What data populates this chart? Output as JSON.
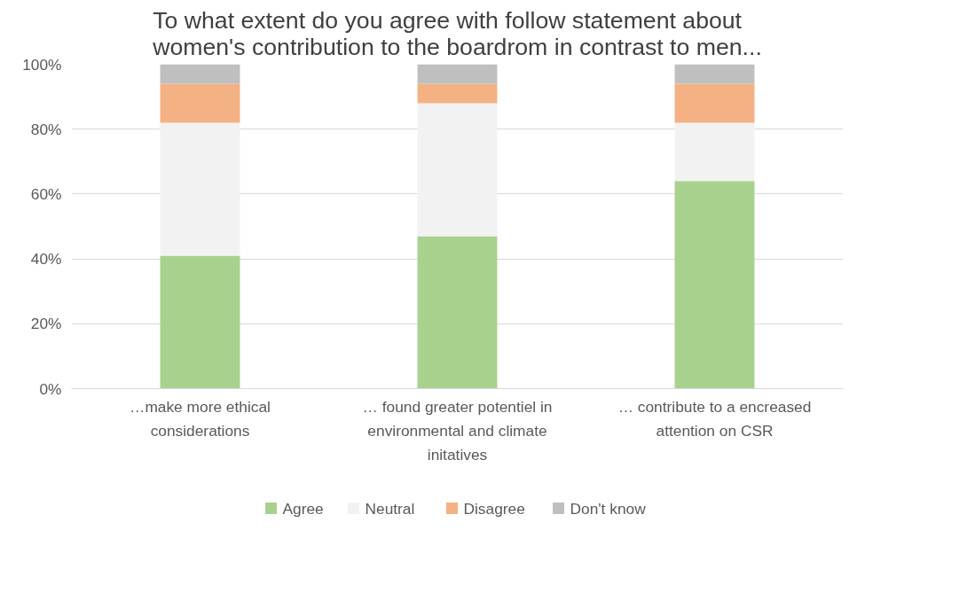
{
  "chart_data": {
    "type": "bar",
    "stacked": true,
    "title": "To what extent do you agree with follow statement about women's contribution to the boardrom in contrast to men...",
    "categories": [
      "…make more ethical considerations",
      "… found greater potentiel in environmental and climate initatives",
      "… contribute to a encreased attention on CSR"
    ],
    "series": [
      {
        "name": "Agree",
        "color": "#a9d18e",
        "values": [
          41,
          47,
          64
        ]
      },
      {
        "name": "Neutral",
        "color": "#f2f2f2",
        "values": [
          41,
          41,
          18
        ]
      },
      {
        "name": "Disagree",
        "color": "#f4b183",
        "values": [
          12,
          6,
          12
        ]
      },
      {
        "name": "Don't know",
        "color": "#bfbfbf",
        "values": [
          6,
          6,
          6
        ]
      }
    ],
    "ylim": [
      0,
      100
    ],
    "yticks": [
      {
        "value": 0,
        "label": "0%"
      },
      {
        "value": 20,
        "label": "20%"
      },
      {
        "value": 40,
        "label": "40%"
      },
      {
        "value": 60,
        "label": "60%"
      },
      {
        "value": 80,
        "label": "80%"
      },
      {
        "value": 100,
        "label": "100%"
      }
    ],
    "grid": "y",
    "legend": "bottom"
  }
}
